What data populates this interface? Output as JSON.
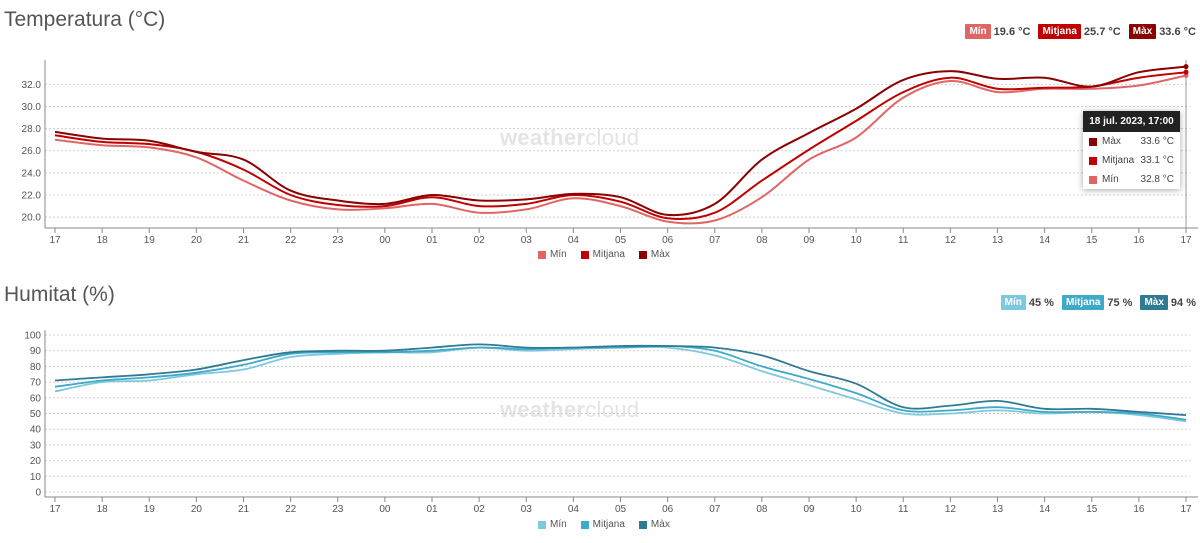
{
  "chart_data": [
    {
      "type": "line",
      "title": "Temperatura (°C)",
      "categories": [
        "17",
        "18",
        "19",
        "20",
        "21",
        "22",
        "23",
        "00",
        "01",
        "02",
        "03",
        "04",
        "05",
        "06",
        "07",
        "08",
        "09",
        "10",
        "11",
        "12",
        "13",
        "14",
        "15",
        "16",
        "17"
      ],
      "yticks": [
        "20.0",
        "22.0",
        "24.0",
        "26.0",
        "28.0",
        "30.0",
        "32.0"
      ],
      "ylim": [
        19.2,
        34.2
      ],
      "summary": [
        {
          "label": "Mín",
          "value": "19.6 °C",
          "color": "#e06666"
        },
        {
          "label": "Mitjana",
          "value": "25.7 °C",
          "color": "#c00000"
        },
        {
          "label": "Màx",
          "value": "33.6 °C",
          "color": "#8b0000"
        }
      ],
      "series": [
        {
          "name": "Mín",
          "color": "#e06666",
          "values": [
            27.0,
            26.5,
            26.3,
            25.4,
            23.3,
            21.5,
            20.7,
            20.8,
            21.2,
            20.4,
            20.7,
            21.7,
            21.0,
            19.6,
            19.7,
            21.8,
            25.2,
            27.2,
            30.8,
            32.3,
            31.3,
            31.6,
            31.6,
            31.9,
            32.8
          ]
        },
        {
          "name": "Mitjana",
          "color": "#c00000",
          "values": [
            27.4,
            26.8,
            26.6,
            25.9,
            24.3,
            22.0,
            21.1,
            21.0,
            21.8,
            21.0,
            21.2,
            22.0,
            21.4,
            19.9,
            20.4,
            23.3,
            26.1,
            28.7,
            31.3,
            32.6,
            31.6,
            31.7,
            31.8,
            32.6,
            33.1
          ]
        },
        {
          "name": "Màx",
          "color": "#8b0000",
          "values": [
            27.7,
            27.1,
            26.9,
            25.9,
            25.2,
            22.4,
            21.5,
            21.2,
            22.0,
            21.5,
            21.6,
            22.1,
            21.8,
            20.2,
            21.2,
            25.2,
            27.6,
            29.8,
            32.4,
            33.2,
            32.5,
            32.6,
            31.8,
            33.1,
            33.6
          ]
        }
      ],
      "legend": [
        "Mín",
        "Mitjana",
        "Màx"
      ],
      "tooltip": {
        "title": "18 jul. 2023, 17:00",
        "rows": [
          {
            "label": "Màx",
            "value": "33.6 °C",
            "color": "#8b0000"
          },
          {
            "label": "Mitjana",
            "value": "33.1 °C",
            "color": "#c00000"
          },
          {
            "label": "Mín",
            "value": "32.8 °C",
            "color": "#e06666"
          }
        ]
      }
    },
    {
      "type": "line",
      "title": "Humitat (%)",
      "categories": [
        "17",
        "18",
        "19",
        "20",
        "21",
        "22",
        "23",
        "00",
        "01",
        "02",
        "03",
        "04",
        "05",
        "06",
        "07",
        "08",
        "09",
        "10",
        "11",
        "12",
        "13",
        "14",
        "15",
        "16",
        "17"
      ],
      "yticks": [
        "0",
        "10",
        "20",
        "30",
        "40",
        "50",
        "60",
        "70",
        "80",
        "90",
        "100"
      ],
      "ylim": [
        0,
        100
      ],
      "summary": [
        {
          "label": "Mín",
          "value": "45 %",
          "color": "#7ec8dd"
        },
        {
          "label": "Mitjana",
          "value": "75 %",
          "color": "#3fa9c9"
        },
        {
          "label": "Màx",
          "value": "94 %",
          "color": "#2e7b93"
        }
      ],
      "series": [
        {
          "name": "Mín",
          "color": "#7ec8dd",
          "values": [
            64,
            70,
            71,
            75,
            78,
            86,
            88,
            89,
            89,
            92,
            90,
            91,
            92,
            92,
            87,
            77,
            68,
            59,
            50,
            50,
            52,
            50,
            51,
            49,
            45
          ]
        },
        {
          "name": "Mitjana",
          "color": "#3fa9c9",
          "values": [
            67,
            71,
            73,
            76,
            81,
            88,
            89,
            89,
            90,
            92,
            91,
            92,
            92,
            93,
            90,
            80,
            72,
            63,
            52,
            52,
            54,
            51,
            51,
            50,
            46
          ]
        },
        {
          "name": "Màx",
          "color": "#2e7b93",
          "values": [
            71,
            73,
            75,
            78,
            84,
            89,
            90,
            90,
            92,
            94,
            92,
            92,
            93,
            93,
            92,
            87,
            77,
            69,
            54,
            55,
            58,
            53,
            53,
            51,
            49
          ]
        }
      ],
      "legend": [
        "Mín",
        "Mitjana",
        "Màx"
      ]
    }
  ],
  "watermark": {
    "a": "weather",
    "b": "cloud"
  }
}
